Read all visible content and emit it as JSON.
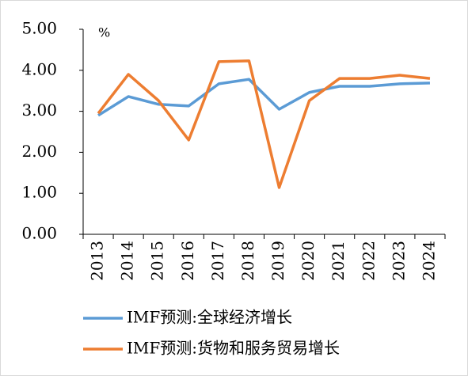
{
  "chart_data": {
    "type": "line",
    "unit_label": "%",
    "categories": [
      "2013",
      "2014",
      "2015",
      "2016",
      "2017",
      "2018",
      "2019",
      "2020",
      "2021",
      "2022",
      "2023",
      "2024"
    ],
    "series": [
      {
        "name": "IMF预测:全球经济增长",
        "color": "#5b9bd5",
        "values": [
          2.9,
          3.36,
          3.17,
          3.13,
          3.67,
          3.78,
          3.05,
          3.46,
          3.61,
          3.61,
          3.67,
          3.69
        ]
      },
      {
        "name": "IMF预测:货物和服务贸易增长",
        "color": "#ed7d31",
        "values": [
          2.95,
          3.9,
          3.26,
          2.3,
          4.21,
          4.23,
          1.14,
          3.26,
          3.8,
          3.8,
          3.88,
          3.8
        ]
      }
    ],
    "ylim": [
      0,
      5
    ],
    "yticks": [
      {
        "value": 0,
        "label": "0.00"
      },
      {
        "value": 1,
        "label": "1.00"
      },
      {
        "value": 2,
        "label": "2.00"
      },
      {
        "value": 3,
        "label": "3.00"
      },
      {
        "value": 4,
        "label": "4.00"
      },
      {
        "value": 5,
        "label": "5.00"
      }
    ],
    "grid": false
  }
}
